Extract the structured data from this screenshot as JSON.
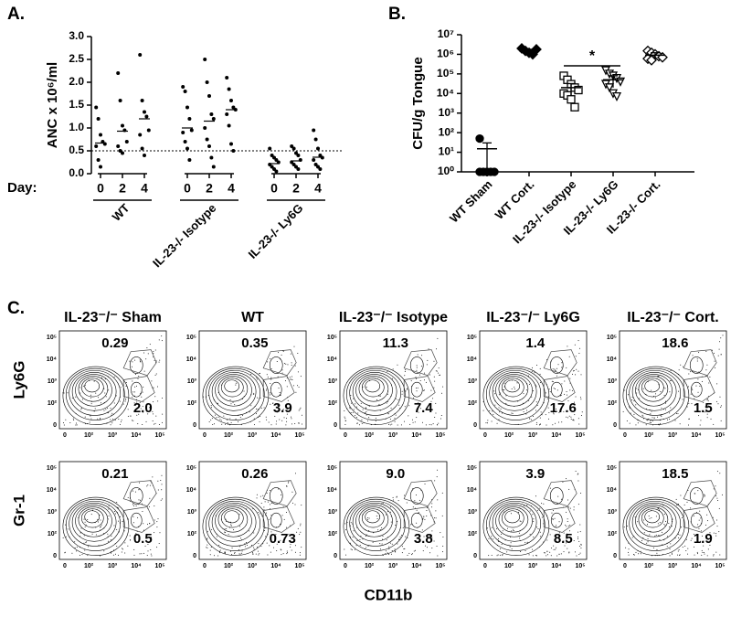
{
  "chart_data": [
    {
      "type": "dot",
      "panel_label": "A.",
      "ylabel": "ANC x 10⁶/ml",
      "x_label": "Day:",
      "ylim": [
        0,
        3
      ],
      "yticks": [
        {
          "value": 0,
          "label": "0.0"
        },
        0.5,
        {
          "value": 1,
          "label": "1.0"
        },
        1.5,
        {
          "value": 2,
          "label": "2.0"
        },
        2.5,
        {
          "value": 3,
          "label": "3.0"
        }
      ],
      "reference_line": 0.5,
      "groups": [
        {
          "label": "WT",
          "categories": [
            "0",
            "2",
            "4"
          ],
          "points": [
            [
              1.45,
              1.2,
              0.85,
              0.7,
              0.65,
              0.6,
              0.3,
              0.15
            ],
            [
              2.2,
              1.6,
              1.05,
              0.95,
              0.7,
              0.6,
              0.5,
              0.45
            ],
            [
              2.6,
              1.6,
              1.35,
              1.25,
              0.95,
              0.85,
              0.55,
              0.4
            ]
          ],
          "means": [
            0.67,
            0.93,
            1.2
          ]
        },
        {
          "label": "IL-23-/- Isotype",
          "categories": [
            "0",
            "2",
            "4"
          ],
          "points": [
            [
              1.9,
              1.8,
              1.45,
              1.2,
              0.95,
              0.9,
              0.7,
              0.55,
              0.3
            ],
            [
              2.5,
              2.0,
              1.7,
              1.3,
              1.2,
              1.0,
              0.75,
              0.6,
              0.35,
              0.15
            ],
            [
              2.1,
              1.85,
              1.6,
              1.45,
              1.4,
              1.3,
              1.05,
              0.65,
              0.5
            ]
          ],
          "means": [
            1.0,
            1.15,
            1.4
          ]
        },
        {
          "label": "IL-23-/- Ly6G",
          "categories": [
            "0",
            "2",
            "4"
          ],
          "points": [
            [
              0.55,
              0.4,
              0.35,
              0.3,
              0.25,
              0.2,
              0.15,
              0.1,
              0.05
            ],
            [
              0.6,
              0.55,
              0.45,
              0.4,
              0.3,
              0.25,
              0.2,
              0.15,
              0.1
            ],
            [
              0.95,
              0.75,
              0.55,
              0.4,
              0.35,
              0.3,
              0.2,
              0.15,
              0.1
            ]
          ],
          "means": [
            0.22,
            0.28,
            0.36
          ]
        }
      ]
    },
    {
      "type": "log-dot",
      "panel_label": "B.",
      "ylabel": "CFU/g Tongue",
      "yscale": "log",
      "ylim": [
        1,
        10000000
      ],
      "yticks": [
        {
          "value": 1,
          "label": "10⁰"
        },
        {
          "value": 10,
          "label": "10¹"
        },
        {
          "value": 100,
          "label": "10²"
        },
        {
          "value": 1000,
          "label": "10³"
        },
        {
          "value": 10000,
          "label": "10⁴"
        },
        {
          "value": 100000,
          "label": "10⁵"
        },
        {
          "value": 1000000,
          "label": "10⁶"
        },
        {
          "value": 10000000,
          "label": "10⁷"
        }
      ],
      "categories": [
        "WT Sham",
        "WT Cort.",
        "IL-23-/- Isotype",
        "IL-23-/- Ly6G",
        "IL-23-/- Cort."
      ],
      "markers": [
        "filled-circle",
        "filled-diamond",
        "open-square",
        "open-triangle",
        "open-diamond"
      ],
      "points": [
        [
          50,
          1,
          1,
          1,
          1,
          1
        ],
        [
          2000000,
          1500000,
          1200000,
          1000000,
          1800000
        ],
        [
          80000,
          50000,
          30000,
          20000,
          15000,
          10000,
          8000,
          5000,
          2000
        ],
        [
          150000,
          100000,
          80000,
          60000,
          40000,
          30000,
          20000,
          10000,
          7000
        ],
        [
          1500000,
          1200000,
          1000000,
          800000,
          700000,
          600000,
          500000
        ]
      ],
      "means": [
        15,
        1500000,
        20000,
        50000,
        900000
      ],
      "errors": [
        15,
        300000,
        12000,
        30000,
        300000
      ],
      "significance": {
        "label": "*",
        "between": [
          2,
          3
        ]
      }
    }
  ],
  "flow": {
    "panel_label": "C.",
    "xlabel": "CD11b",
    "axis_ticks": [
      "0",
      "10²",
      "10³",
      "10⁴",
      "10⁵"
    ],
    "columns": [
      "IL-23⁻/⁻ Sham",
      "WT",
      "IL-23⁻/⁻ Isotype",
      "IL-23⁻/⁻ Ly6G",
      "IL-23⁻/⁻ Cort."
    ],
    "rows": [
      {
        "label": "Ly6G",
        "gates": [
          [
            "0.29",
            "2.0"
          ],
          [
            "0.35",
            "3.9"
          ],
          [
            "11.3",
            "7.4"
          ],
          [
            "1.4",
            "17.6"
          ],
          [
            "18.6",
            "1.5"
          ]
        ]
      },
      {
        "label": "Gr-1",
        "gates": [
          [
            "0.21",
            "0.5"
          ],
          [
            "0.26",
            "0.73"
          ],
          [
            "9.0",
            "3.8"
          ],
          [
            "3.9",
            "8.5"
          ],
          [
            "18.5",
            "1.9"
          ]
        ]
      }
    ]
  }
}
